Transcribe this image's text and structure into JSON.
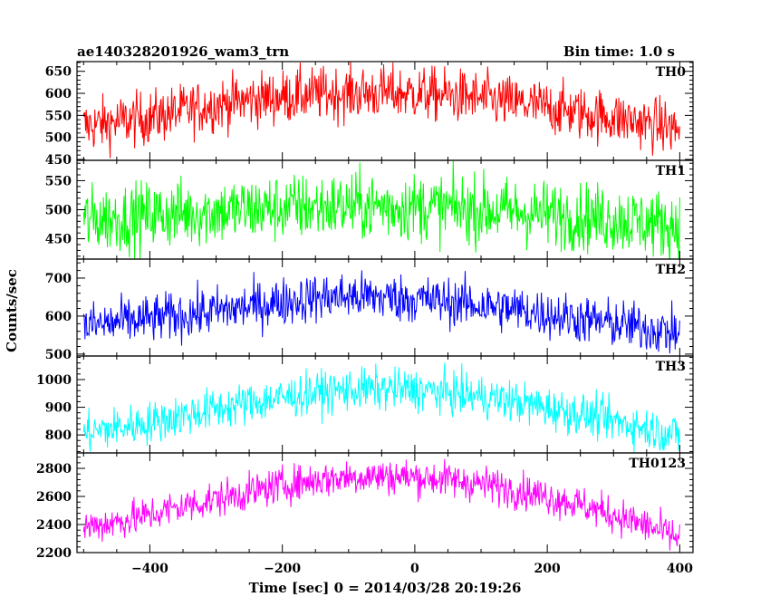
{
  "header": {
    "left_title": "ae140328201926_wam3_trn",
    "right_title": "Bin time: 1.0 s"
  },
  "chart_data": {
    "type": "line",
    "xlabel": "Time [sec] 0 = 2014/03/28 20:19:26",
    "ylabel": "Counts/sec",
    "xlim": [
      -510,
      420
    ],
    "xticks": [
      -400,
      -200,
      0,
      200,
      400
    ],
    "x_step": 1.0,
    "panels": [
      {
        "name": "TH0",
        "color": "#ff0000",
        "ylim": [
          448,
          672
        ],
        "yticks": [
          450,
          500,
          550,
          600,
          650
        ],
        "x": [
          -500,
          -450,
          -400,
          -350,
          -300,
          -250,
          -200,
          -150,
          -100,
          -50,
          0,
          50,
          100,
          150,
          200,
          250,
          300,
          350,
          400
        ],
        "y": [
          525,
          535,
          545,
          560,
          575,
          585,
          592,
          598,
          600,
          601,
          600,
          595,
          588,
          578,
          568,
          555,
          545,
          532,
          518
        ]
      },
      {
        "name": "TH1",
        "color": "#00ff00",
        "ylim": [
          415,
          585
        ],
        "yticks": [
          450,
          500,
          550
        ],
        "x": [
          -500,
          -450,
          -400,
          -350,
          -300,
          -250,
          -200,
          -150,
          -100,
          -50,
          0,
          50,
          100,
          150,
          200,
          250,
          300,
          350,
          400
        ],
        "y": [
          482,
          486,
          490,
          494,
          497,
          500,
          503,
          505,
          506,
          506,
          505,
          503,
          500,
          496,
          492,
          488,
          484,
          478,
          472
        ]
      },
      {
        "name": "TH2",
        "color": "#0000ff",
        "ylim": [
          495,
          750
        ],
        "yticks": [
          500,
          600,
          700
        ],
        "x": [
          -500,
          -450,
          -400,
          -350,
          -300,
          -250,
          -200,
          -150,
          -100,
          -50,
          0,
          50,
          100,
          150,
          200,
          250,
          300,
          350,
          400
        ],
        "y": [
          573,
          583,
          592,
          602,
          613,
          625,
          638,
          648,
          652,
          650,
          645,
          638,
          628,
          618,
          605,
          592,
          580,
          568,
          555
        ]
      },
      {
        "name": "TH3",
        "color": "#00ffff",
        "ylim": [
          735,
          1085
        ],
        "yticks": [
          800,
          900,
          1000
        ],
        "x": [
          -500,
          -450,
          -400,
          -350,
          -300,
          -250,
          -200,
          -150,
          -100,
          -50,
          0,
          50,
          100,
          150,
          200,
          250,
          300,
          350,
          400
        ],
        "y": [
          808,
          825,
          845,
          870,
          895,
          915,
          935,
          952,
          962,
          965,
          962,
          952,
          938,
          920,
          898,
          875,
          850,
          825,
          798
        ]
      },
      {
        "name": "TH0123",
        "color": "#ff00ff",
        "ylim": [
          2200,
          2910
        ],
        "yticks": [
          2200,
          2400,
          2600,
          2800
        ],
        "x": [
          -500,
          -450,
          -400,
          -350,
          -300,
          -250,
          -200,
          -150,
          -100,
          -50,
          0,
          50,
          100,
          150,
          200,
          250,
          300,
          350,
          400
        ],
        "y": [
          2380,
          2420,
          2470,
          2530,
          2580,
          2630,
          2680,
          2715,
          2740,
          2745,
          2738,
          2720,
          2690,
          2650,
          2600,
          2540,
          2470,
          2390,
          2300
        ]
      }
    ]
  }
}
